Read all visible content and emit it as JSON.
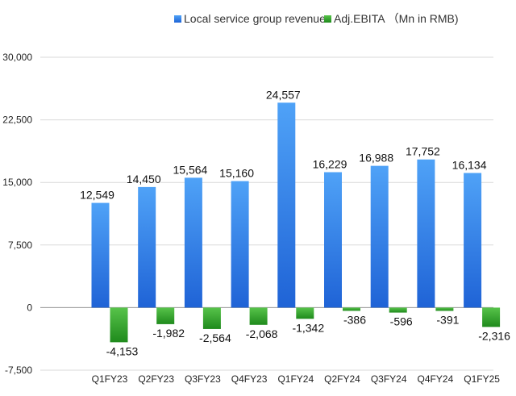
{
  "chart_data": {
    "type": "bar",
    "title": "",
    "xlabel": "",
    "ylabel": "",
    "categories": [
      "Q1FY23",
      "Q2FY23",
      "Q3FY23",
      "Q4FY23",
      "Q1FY24",
      "Q2FY24",
      "Q3FY24",
      "Q4FY24",
      "Q1FY25"
    ],
    "series": [
      {
        "name": "Local service group revenue",
        "color": "#2f7fe8",
        "values": [
          12549,
          14450,
          15564,
          15160,
          24557,
          16229,
          16988,
          17752,
          16134
        ],
        "data_labels": [
          "12,549",
          "14,450",
          "15,564",
          "15,160",
          "24,557",
          "16,229",
          "16,988",
          "17,752",
          "16,134"
        ]
      },
      {
        "name": "Adj.EBITA （Mn in RMB)",
        "color": "#2fa526",
        "values": [
          -4153,
          -1982,
          -2564,
          -2068,
          -1342,
          -386,
          -596,
          -391,
          -2316
        ],
        "data_labels": [
          "-4,153",
          "-1,982",
          "-2,564",
          "-2,068",
          "-1,342",
          "-386",
          "-596",
          "-391",
          "-2,316"
        ]
      }
    ],
    "ylim": [
      -7500,
      30000
    ],
    "yticks": [
      -7500,
      0,
      7500,
      15000,
      22500,
      30000
    ],
    "ytick_labels": [
      "-7,500",
      "0",
      "7,500",
      "15,000",
      "22,500",
      "30,000"
    ],
    "grid": true,
    "legend_position": "top"
  }
}
